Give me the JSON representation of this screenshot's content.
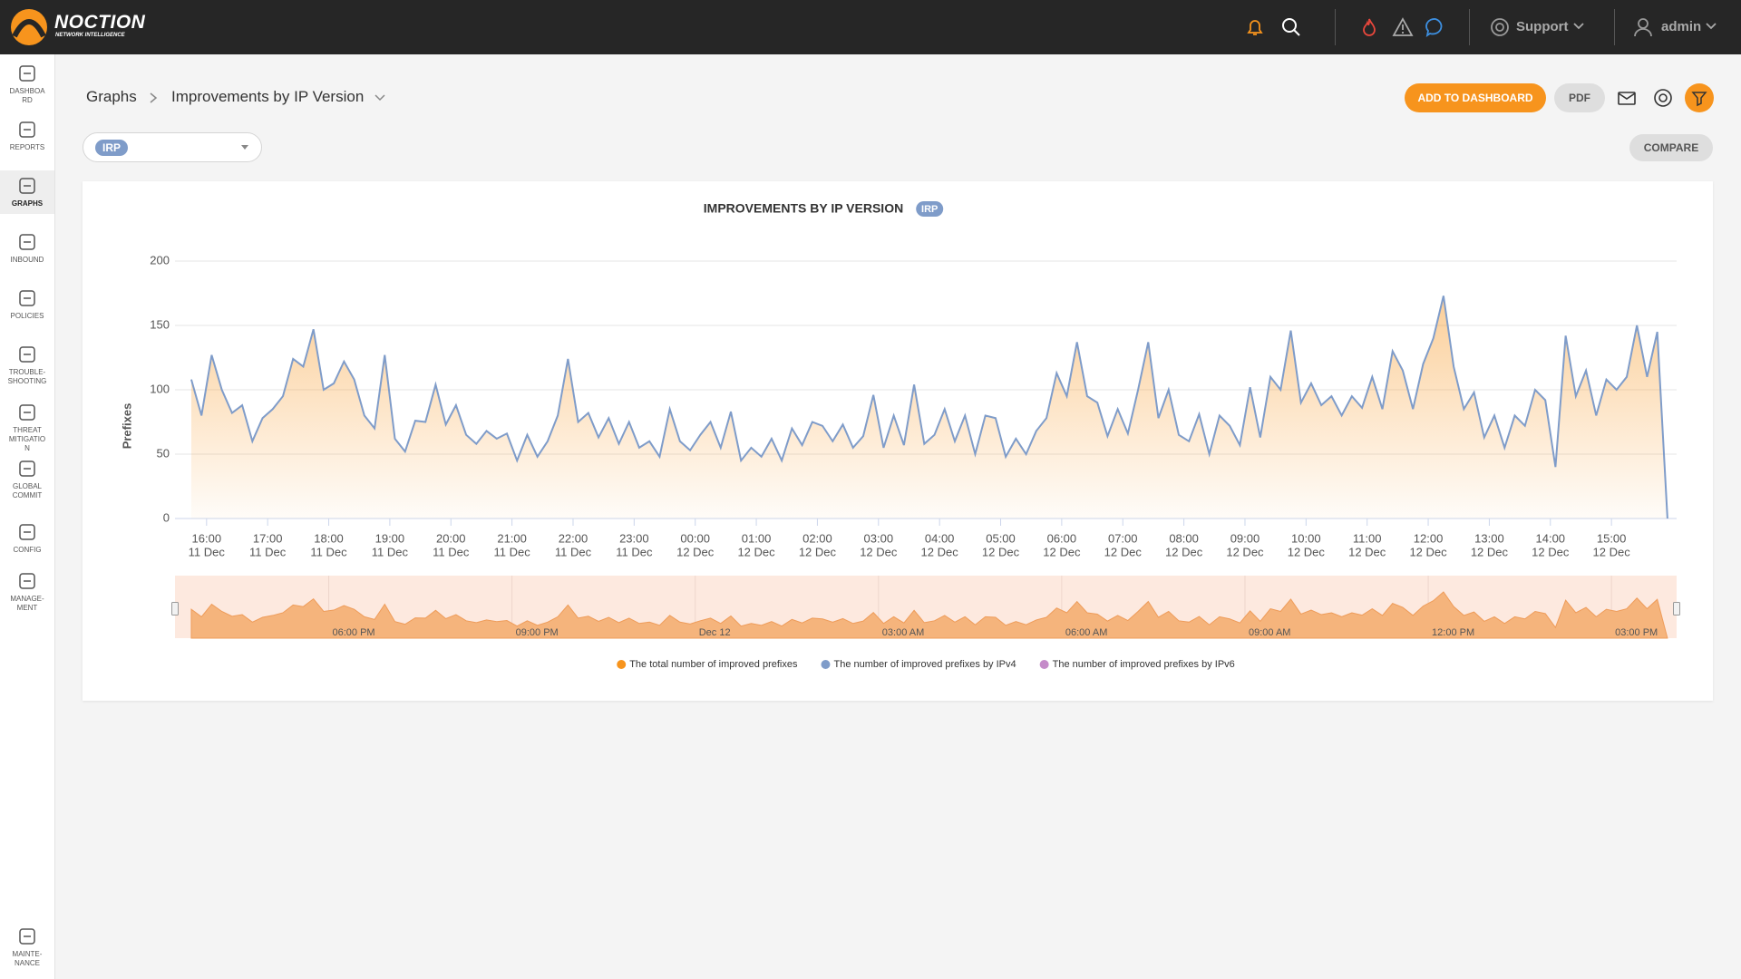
{
  "header": {
    "logo": "NOCTION",
    "logo_sub": "NETWORK INTELLIGENCE",
    "support": "Support",
    "user": "admin"
  },
  "sidebar": {
    "items": [
      "DASHBOARD",
      "REPORTS",
      "GRAPHS",
      "INBOUND",
      "POLICIES",
      "TROUBLE-SHOOTING",
      "THREAT MITIGATION",
      "GLOBAL COMMIT",
      "CONFIG",
      "MANAGE-MENT"
    ],
    "bottom": "MAINTE-NANCE"
  },
  "breadcrumb": {
    "root": "Graphs",
    "current": "Improvements by IP Version"
  },
  "toolbar": {
    "add": "ADD TO DASHBOARD",
    "pdf": "PDF",
    "compare": "COMPARE",
    "filter_tag": "IRP"
  },
  "chart_data": {
    "type": "area",
    "title": "IMPROVEMENTS BY IP VERSION",
    "title_tag": "IRP",
    "y_label": "Prefixes",
    "legend": "bottom",
    "grid": true,
    "ylim": [
      0,
      200
    ],
    "yticks": [
      0,
      50,
      100,
      150,
      200
    ],
    "xlim": [
      929,
      2404
    ],
    "xticks": [
      {
        "value": 960,
        "label": "16:00",
        "date": "11 Dec"
      },
      {
        "value": 1020,
        "label": "17:00",
        "date": "11 Dec"
      },
      {
        "value": 1080,
        "label": "18:00",
        "date": "11 Dec"
      },
      {
        "value": 1140,
        "label": "19:00",
        "date": "11 Dec"
      },
      {
        "value": 1200,
        "label": "20:00",
        "date": "11 Dec"
      },
      {
        "value": 1260,
        "label": "21:00",
        "date": "11 Dec"
      },
      {
        "value": 1320,
        "label": "22:00",
        "date": "11 Dec"
      },
      {
        "value": 1380,
        "label": "23:00",
        "date": "11 Dec"
      },
      {
        "value": 1440,
        "label": "00:00",
        "date": "12 Dec"
      },
      {
        "value": 1500,
        "label": "01:00",
        "date": "12 Dec"
      },
      {
        "value": 1560,
        "label": "02:00",
        "date": "12 Dec"
      },
      {
        "value": 1620,
        "label": "03:00",
        "date": "12 Dec"
      },
      {
        "value": 1680,
        "label": "04:00",
        "date": "12 Dec"
      },
      {
        "value": 1740,
        "label": "05:00",
        "date": "12 Dec"
      },
      {
        "value": 1800,
        "label": "06:00",
        "date": "12 Dec"
      },
      {
        "value": 1860,
        "label": "07:00",
        "date": "12 Dec"
      },
      {
        "value": 1920,
        "label": "08:00",
        "date": "12 Dec"
      },
      {
        "value": 1980,
        "label": "09:00",
        "date": "12 Dec"
      },
      {
        "value": 2040,
        "label": "10:00",
        "date": "12 Dec"
      },
      {
        "value": 2100,
        "label": "11:00",
        "date": "12 Dec"
      },
      {
        "value": 2160,
        "label": "12:00",
        "date": "12 Dec"
      },
      {
        "value": 2220,
        "label": "13:00",
        "date": "12 Dec"
      },
      {
        "value": 2280,
        "label": "14:00",
        "date": "12 Dec"
      },
      {
        "value": 2340,
        "label": "15:00",
        "date": "12 Dec"
      }
    ],
    "navigator": {
      "xticks": [
        {
          "value": 1080,
          "label": "06:00 PM"
        },
        {
          "value": 1260,
          "label": "09:00 PM"
        },
        {
          "value": 1440,
          "label": "Dec 12"
        },
        {
          "value": 1620,
          "label": "03:00 AM"
        },
        {
          "value": 1800,
          "label": "06:00 AM"
        },
        {
          "value": 1980,
          "label": "09:00 AM"
        },
        {
          "value": 2160,
          "label": "12:00 PM"
        },
        {
          "value": 2340,
          "label": "03:00 PM"
        }
      ]
    },
    "x": [
      945,
      955,
      965,
      975,
      985,
      995,
      1005,
      1015,
      1025,
      1035,
      1045,
      1055,
      1065,
      1075,
      1085,
      1095,
      1105,
      1115,
      1125,
      1135,
      1145,
      1155,
      1165,
      1175,
      1185,
      1195,
      1205,
      1215,
      1225,
      1235,
      1245,
      1255,
      1265,
      1275,
      1285,
      1295,
      1305,
      1315,
      1325,
      1335,
      1345,
      1355,
      1365,
      1375,
      1385,
      1395,
      1405,
      1415,
      1425,
      1435,
      1445,
      1455,
      1465,
      1475,
      1485,
      1495,
      1505,
      1515,
      1525,
      1535,
      1545,
      1555,
      1565,
      1575,
      1585,
      1595,
      1605,
      1615,
      1625,
      1635,
      1645,
      1655,
      1665,
      1675,
      1685,
      1695,
      1705,
      1715,
      1725,
      1735,
      1745,
      1755,
      1765,
      1775,
      1785,
      1795,
      1805,
      1815,
      1825,
      1835,
      1845,
      1855,
      1865,
      1875,
      1885,
      1895,
      1905,
      1915,
      1925,
      1935,
      1945,
      1955,
      1965,
      1975,
      1985,
      1995,
      2005,
      2015,
      2025,
      2035,
      2045,
      2055,
      2065,
      2075,
      2085,
      2095,
      2105,
      2115,
      2125,
      2135,
      2145,
      2155,
      2165,
      2175,
      2185,
      2195,
      2205,
      2215,
      2225,
      2235,
      2245,
      2255,
      2265,
      2275,
      2285,
      2295,
      2305,
      2315,
      2325,
      2335,
      2345,
      2355,
      2365,
      2375,
      2385,
      2395
    ],
    "series": [
      {
        "name": "The total number of improved prefixes",
        "color": "#f7941d",
        "values": [
          108,
          80,
          127,
          100,
          82,
          88,
          60,
          78,
          85,
          95,
          124,
          118,
          147,
          100,
          105,
          122,
          108,
          80,
          70,
          127,
          62,
          52,
          76,
          75,
          104,
          73,
          88,
          65,
          58,
          68,
          62,
          66,
          45,
          65,
          48,
          60,
          80,
          124,
          75,
          82,
          63,
          78,
          58,
          75,
          55,
          60,
          48,
          85,
          60,
          53,
          65,
          75,
          55,
          83,
          45,
          55,
          48,
          62,
          45,
          70,
          57,
          75,
          72,
          60,
          73,
          55,
          64,
          96,
          55,
          80,
          57,
          104,
          58,
          65,
          85,
          60,
          80,
          50,
          80,
          78,
          48,
          62,
          50,
          68,
          78,
          113,
          95,
          137,
          95,
          90,
          64,
          85,
          66,
          100,
          137,
          78,
          100,
          65,
          60,
          81,
          50,
          80,
          72,
          57,
          102,
          63,
          110,
          100,
          146,
          90,
          105,
          88,
          95,
          80,
          95,
          86,
          110,
          85,
          130,
          115,
          85,
          120,
          140,
          173,
          118,
          85,
          98,
          63,
          80,
          55,
          80,
          72,
          100,
          92,
          40,
          142,
          95,
          115,
          80,
          108,
          100,
          110,
          150,
          110,
          145,
          0
        ]
      },
      {
        "name": "The number of improved prefixes by IPv4",
        "color": "#7f9cc9",
        "values": [
          108,
          80,
          127,
          100,
          82,
          88,
          60,
          78,
          85,
          95,
          124,
          118,
          147,
          100,
          105,
          122,
          108,
          80,
          70,
          127,
          62,
          52,
          76,
          75,
          104,
          73,
          88,
          65,
          58,
          68,
          62,
          66,
          45,
          65,
          48,
          60,
          80,
          124,
          75,
          82,
          63,
          78,
          58,
          75,
          55,
          60,
          48,
          85,
          60,
          53,
          65,
          75,
          55,
          83,
          45,
          55,
          48,
          62,
          45,
          70,
          57,
          75,
          72,
          60,
          73,
          55,
          64,
          96,
          55,
          80,
          57,
          104,
          58,
          65,
          85,
          60,
          80,
          50,
          80,
          78,
          48,
          62,
          50,
          68,
          78,
          113,
          95,
          137,
          95,
          90,
          64,
          85,
          66,
          100,
          137,
          78,
          100,
          65,
          60,
          81,
          50,
          80,
          72,
          57,
          102,
          63,
          110,
          100,
          146,
          90,
          105,
          88,
          95,
          80,
          95,
          86,
          110,
          85,
          130,
          115,
          85,
          120,
          140,
          173,
          118,
          85,
          98,
          63,
          80,
          55,
          80,
          72,
          100,
          92,
          40,
          142,
          95,
          115,
          80,
          108,
          100,
          110,
          150,
          110,
          145,
          0
        ]
      },
      {
        "name": "The number of improved prefixes by IPv6",
        "color": "#c58bc9"
      }
    ]
  }
}
